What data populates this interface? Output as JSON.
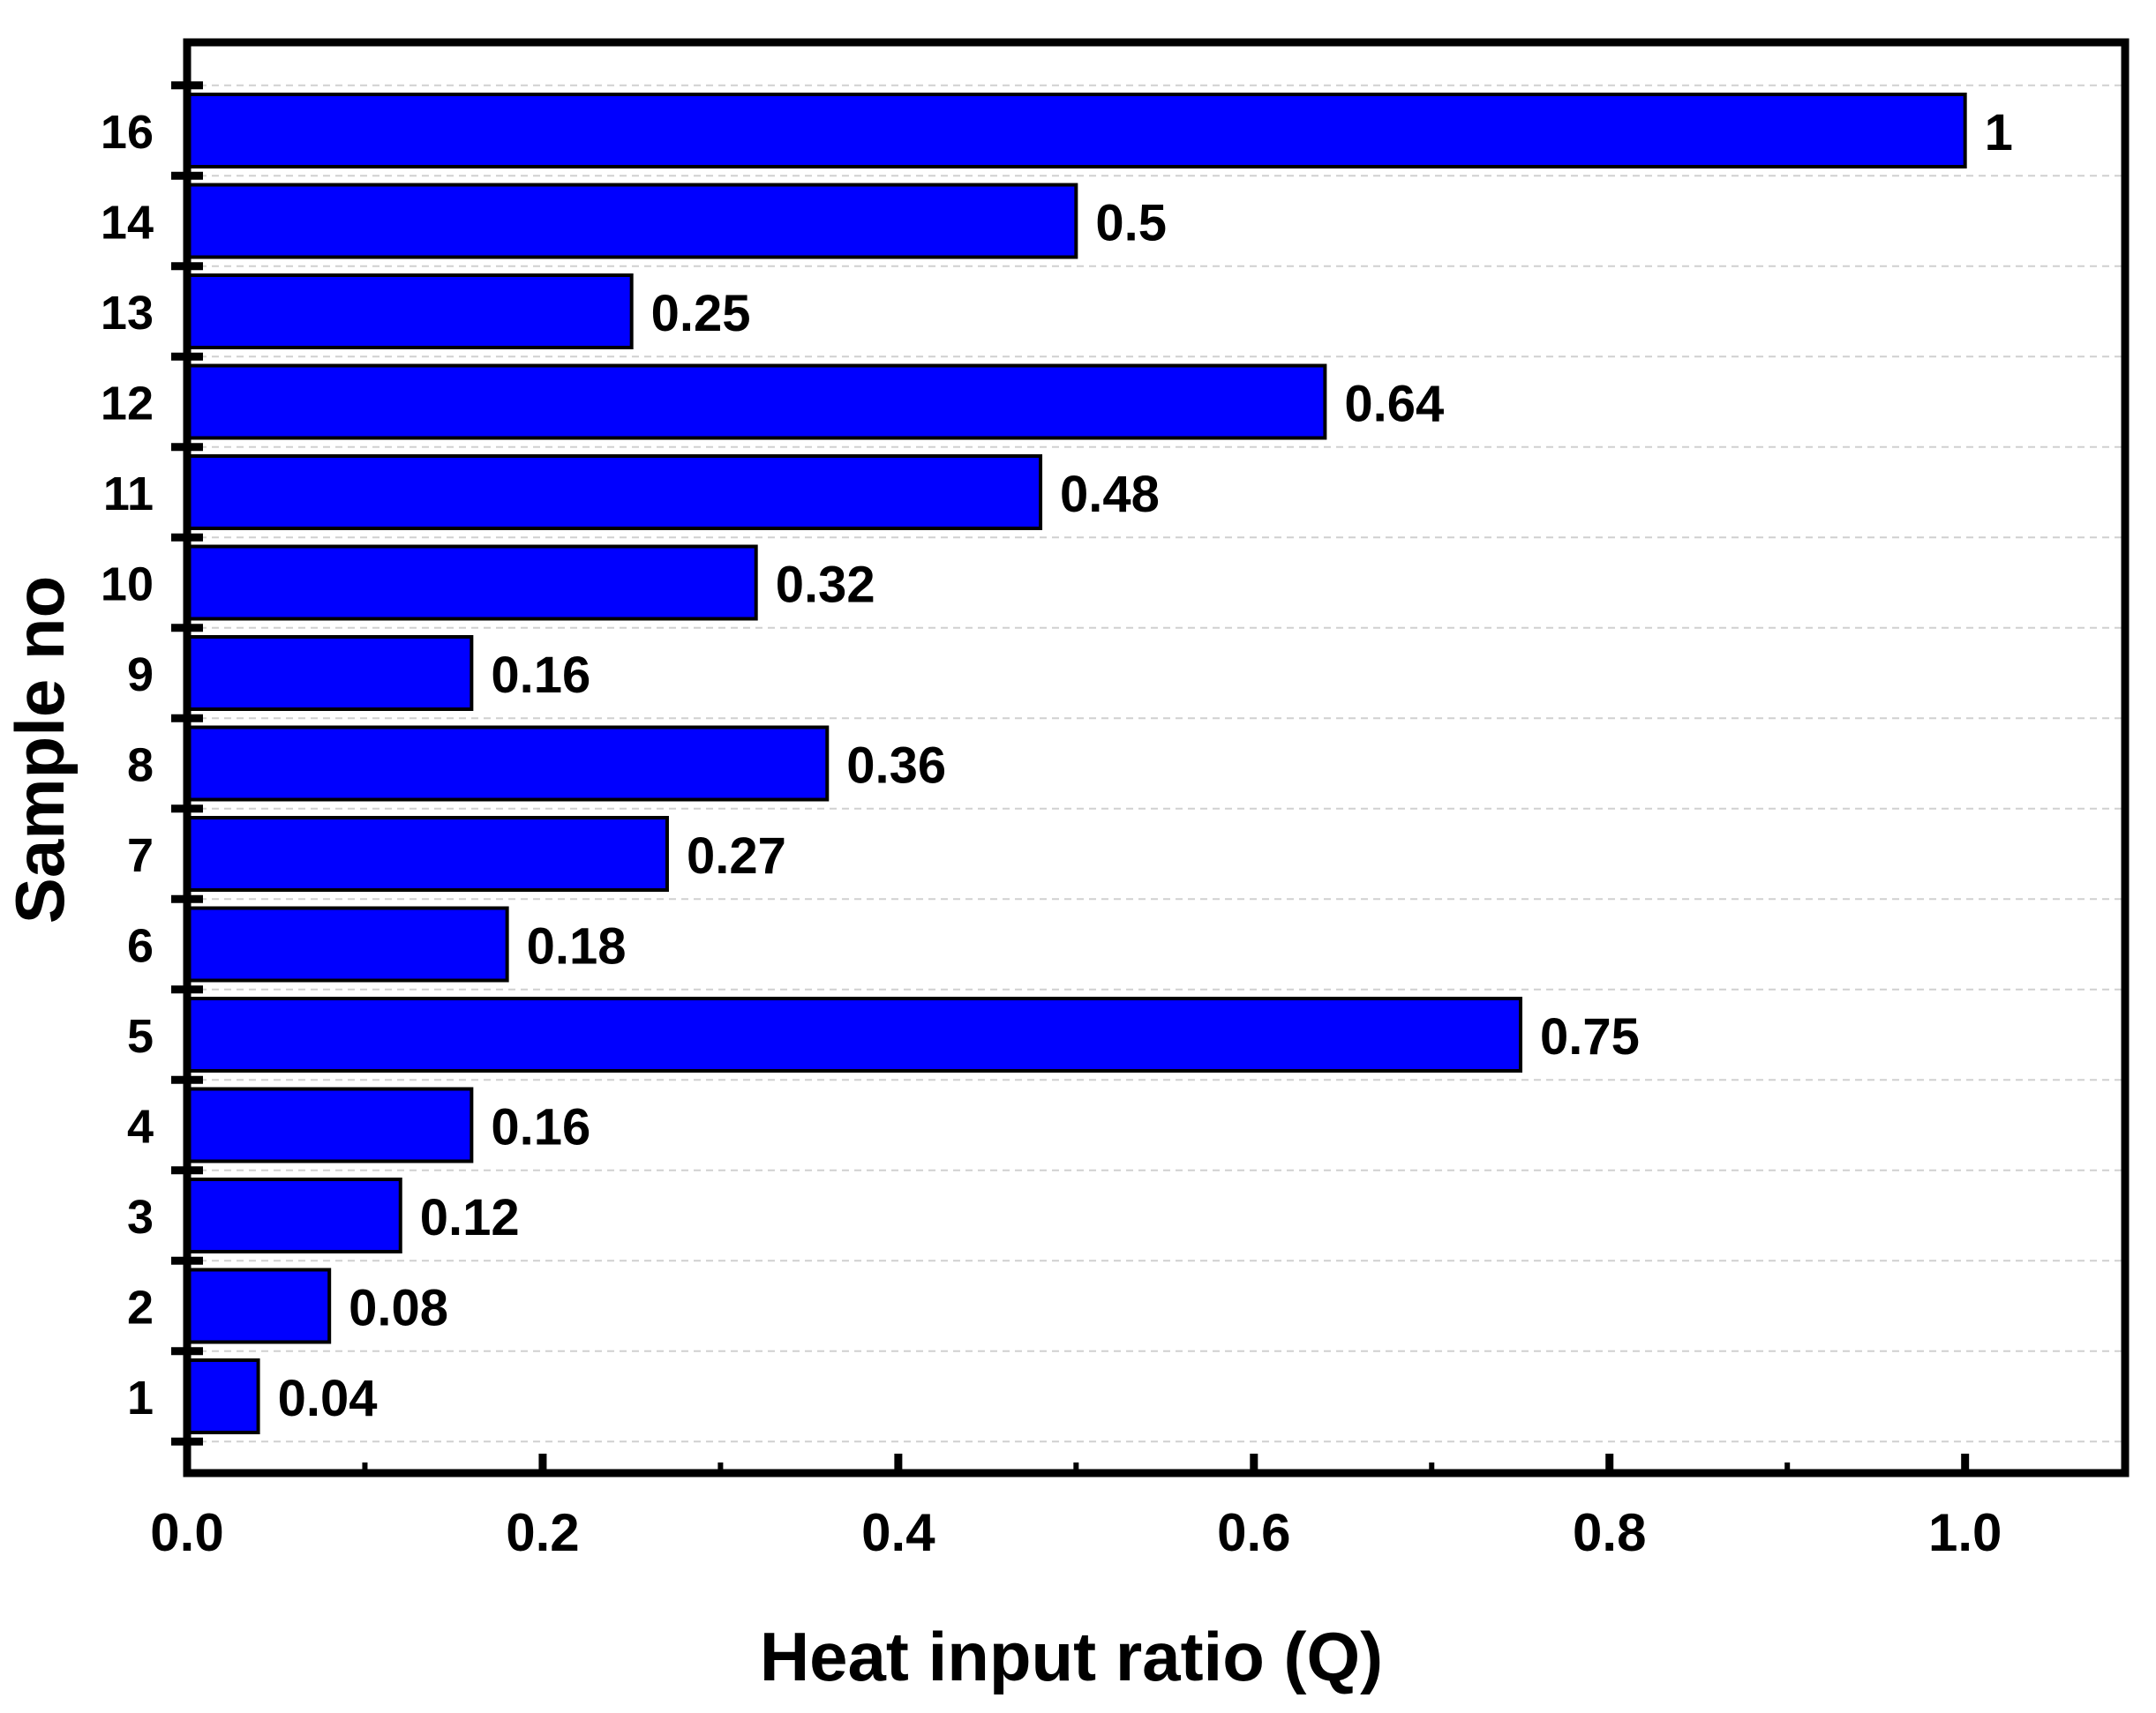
{
  "chart_data": {
    "type": "bar",
    "orientation": "horizontal",
    "title": "",
    "xlabel": "Heat input ratio (Q)",
    "ylabel": "Sample no",
    "categories": [
      "1",
      "2",
      "3",
      "4",
      "5",
      "6",
      "7",
      "8",
      "9",
      "10",
      "11",
      "12",
      "13",
      "14",
      "16"
    ],
    "values": [
      0.04,
      0.08,
      0.12,
      0.16,
      0.75,
      0.18,
      0.27,
      0.36,
      0.16,
      0.32,
      0.48,
      0.64,
      0.25,
      0.5,
      1
    ],
    "data_labels": [
      "0.04",
      "0.08",
      "0.12",
      "0.16",
      "0.75",
      "0.18",
      "0.27",
      "0.36",
      "0.16",
      "0.32",
      "0.48",
      "0.64",
      "0.25",
      "0.5",
      "1"
    ],
    "xlim": [
      0,
      1.09
    ],
    "xticks": [
      0.0,
      0.2,
      0.4,
      0.6,
      0.8,
      1.0
    ],
    "xtick_labels": [
      "0.0",
      "0.2",
      "0.4",
      "0.6",
      "0.8",
      "1.0"
    ],
    "grid": "horizontal dashed",
    "legend": "none",
    "colors": {
      "bar_fill": "#0000ff",
      "bar_edge": "#000000",
      "grid": "#d0d0d0",
      "axis": "#000000"
    }
  }
}
